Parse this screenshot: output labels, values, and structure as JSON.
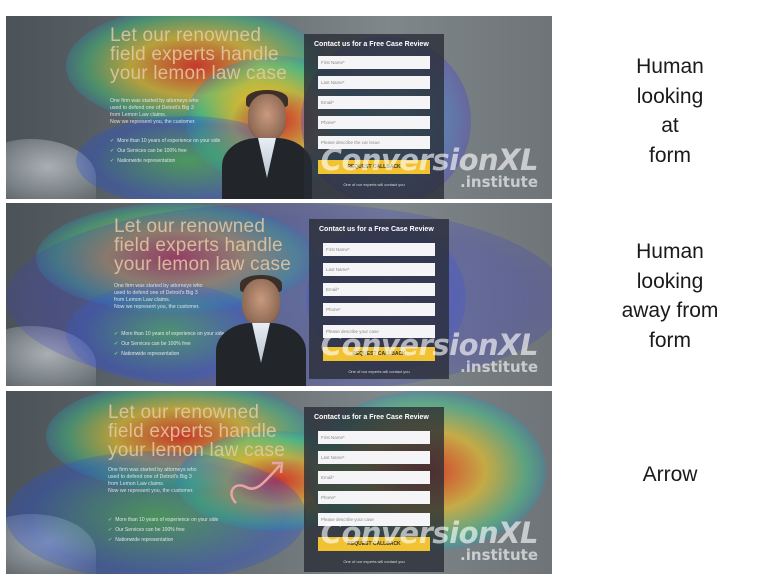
{
  "panels": [
    {
      "caption": [
        "Human",
        "looking",
        "at",
        "form"
      ],
      "headline": [
        "Let our renowned",
        "field experts handle",
        "your lemon law case"
      ],
      "body": [
        "One firm was started by attorneys who",
        "used to defend one of Detroit's Big 3",
        "from Lemon Law claims.",
        "Now we represent you, the customer."
      ],
      "bullets": [
        "More than 10 years of experience on your side",
        "Our Services can be 100% free",
        "Nationwide representation"
      ],
      "form": {
        "title": "Contact us for a Free Case Review",
        "fields": [
          "First Name*",
          "Last Name*",
          "Email*",
          "Phone*",
          "Please describe the car issue"
        ],
        "cta": "REQUEST CALLBACK",
        "note": "One of our experts will contact you"
      },
      "watermark": {
        "brand": "ConversionXL",
        "sub": ".institute"
      }
    },
    {
      "caption": [
        "Human",
        "looking",
        "away from",
        "form"
      ],
      "headline": [
        "Let our renowned",
        "field experts handle",
        "your lemon law case"
      ],
      "body": [
        "One firm was started by attorneys who",
        "used to defend one of Detroit's Big 3",
        "from Lemon Law claims.",
        "Now we represent you, the customer."
      ],
      "bullets": [
        "More than 10 years of experience on your side",
        "Our Services can be 100% free",
        "Nationwide representation"
      ],
      "form": {
        "title": "Contact us for a Free Case Review",
        "fields": [
          "First Name*",
          "Last Name*",
          "Email*",
          "Phone*",
          "Please describe your case"
        ],
        "cta": "REQUEST CALLBACK",
        "note": "One of our experts will contact you"
      },
      "watermark": {
        "brand": "ConversionXL",
        "sub": ".institute"
      }
    },
    {
      "caption": [
        "Arrow"
      ],
      "headline": [
        "Let our renowned",
        "field experts handle",
        "your lemon law case"
      ],
      "body": [
        "One firm was started by attorneys who",
        "used to defend one of Detroit's Big 3",
        "from Lemon Law claims.",
        "Now we represent you, the customer."
      ],
      "bullets": [
        "More than 10 years of experience on your side",
        "Our Services can be 100% free",
        "Nationwide representation"
      ],
      "form": {
        "title": "Contact us for a Free Case Review",
        "fields": [
          "First Name*",
          "Last Name*",
          "Email*",
          "Phone*",
          "Please describe your case"
        ],
        "cta": "REQUEST CALLBACK",
        "note": "One of our experts will contact you"
      },
      "watermark": {
        "brand": "ConversionXL",
        "sub": ".institute"
      }
    }
  ]
}
